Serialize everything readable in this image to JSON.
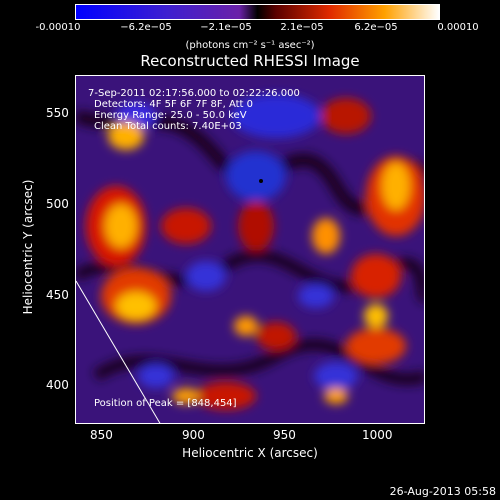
{
  "colorbar": {
    "ticks": [
      "-0.00010",
      "−6.2e−05",
      "−2.1e−05",
      "2.1e−05",
      "6.2e−05",
      "0.00010"
    ],
    "units": "(photons cm⁻² s⁻¹ asec⁻²)"
  },
  "title": "Reconstructed RHESSI Image",
  "annotations": {
    "time_range": "7-Sep-2011 02:17:56.000 to 02:22:26.000",
    "detectors": "Detectors: 4F 5F 6F 7F 8F, Att 0",
    "energy": "Energy Range: 25.0 - 50.0 keV",
    "clean": "Clean    Total counts: 7.40E+03",
    "peak": "Position of Peak = [848,454]"
  },
  "axes": {
    "xlabel": "Heliocentric X (arcsec)",
    "ylabel": "Heliocentric Y (arcsec)",
    "xticks": [
      "850",
      "900",
      "950",
      "1000"
    ],
    "yticks": [
      "550",
      "500",
      "450",
      "400"
    ]
  },
  "footer": {
    "date": "26-Aug-2013 05:58"
  }
}
